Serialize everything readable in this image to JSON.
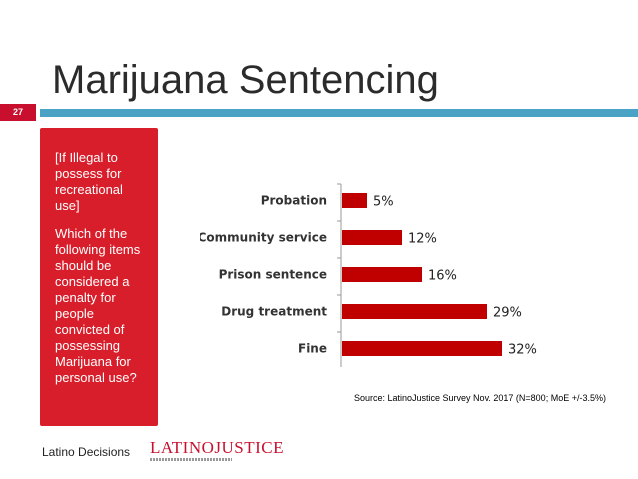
{
  "slide": {
    "title": "Marijuana Sentencing",
    "number": "27",
    "question_condition": "[If Illegal to possess for recreational use]",
    "question_text": "Which of the following items should be considered a penalty for people convicted of possessing Marijuana for personal use?",
    "source": "Source: LatinoJustice Survey Nov. 2017 (N=800; MoE +/-3.5%)"
  },
  "logos": {
    "latino_decisions": "Latino Decisions",
    "latino_justice": "LATINOJUSTICE"
  },
  "colors": {
    "bar": "#c00000",
    "question_box": "#d81e2a",
    "title_rule": "#4aa3c4",
    "slide_number_bg": "#c8102e"
  },
  "chart_data": {
    "type": "bar",
    "orientation": "horizontal",
    "categories": [
      "Probation",
      "Community service",
      "Prison sentence",
      "Drug treatment",
      "Fine"
    ],
    "values": [
      5,
      12,
      16,
      29,
      32
    ],
    "value_labels": [
      "5%",
      "12%",
      "16%",
      "29%",
      "32%"
    ],
    "unit": "%",
    "xlim": [
      0,
      32
    ],
    "grid": false
  }
}
